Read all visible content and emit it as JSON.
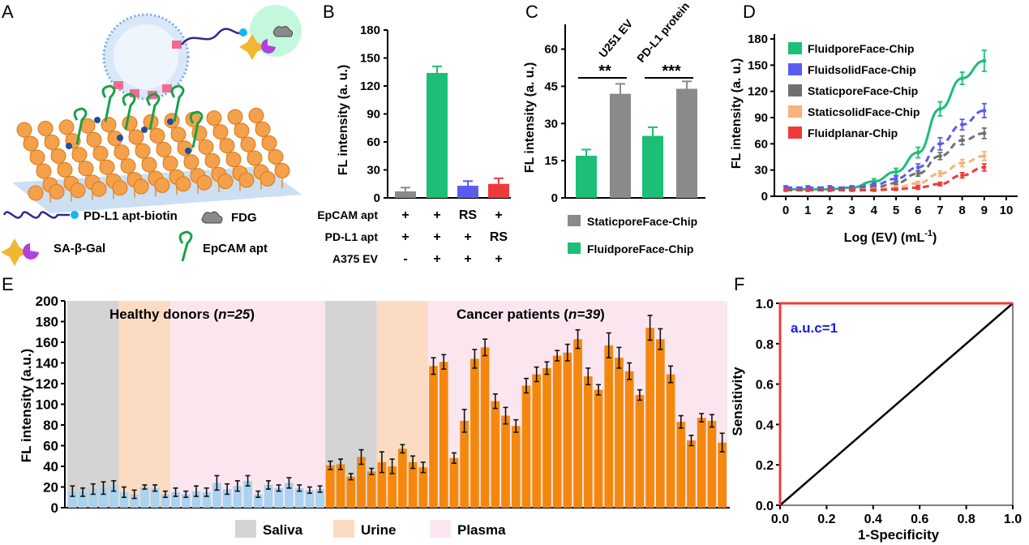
{
  "colors": {
    "green": "#1bbf75",
    "gray": "#8a8a8a",
    "blue": "#5a5cf0",
    "darkgray": "#707070",
    "peach": "#f7b37c",
    "red": "#ef3a3a",
    "orange": "#f4880f",
    "lightblue": "#a9d3ef",
    "saliva": "#d4d4d4",
    "urine": "#fbdcc2",
    "plasma": "#fbe6f0"
  },
  "panels": {
    "A": "A",
    "B": "B",
    "C": "C",
    "D": "D",
    "E": "E",
    "F": "F"
  },
  "schematic": {
    "legend": [
      {
        "icon": "dna-biotin-icon",
        "label": "PD-L1 apt-biotin"
      },
      {
        "icon": "fdg-cloud-icon",
        "label": "FDG"
      },
      {
        "icon": "sa-beta-gal-icon",
        "label": "SA-β-Gal"
      },
      {
        "icon": "epcam-aptamer-icon",
        "label": "EpCAM apt"
      }
    ]
  },
  "chart_data": [
    {
      "id": "B",
      "type": "bar",
      "ylabel": "FL intensity (a. u.)",
      "ylim": [
        0,
        180
      ],
      "yticks": [
        0,
        30,
        60,
        90,
        120,
        150,
        180
      ],
      "values": [
        7,
        134,
        13,
        15
      ],
      "errors": [
        4,
        7,
        5,
        6
      ],
      "bar_colors": [
        "#8a8a8a",
        "#1bbf75",
        "#5a5cf0",
        "#ef3a3a"
      ],
      "condition_table": {
        "rows": [
          {
            "label": "EpCAM apt",
            "cells": [
              "+",
              "+",
              "RS",
              "+"
            ]
          },
          {
            "label": "PD-L1 apt",
            "cells": [
              "+",
              "+",
              "+",
              "RS"
            ]
          },
          {
            "label": "A375 EV",
            "cells": [
              "-",
              "+",
              "+",
              "+"
            ]
          }
        ]
      }
    },
    {
      "id": "C",
      "type": "bar",
      "ylabel": "FL intensity (a. u.)",
      "ylim": [
        0,
        70
      ],
      "yticks": [
        0,
        15,
        30,
        45,
        60
      ],
      "groups": [
        "U251 EV",
        "PD-L1 protein"
      ],
      "significance": [
        "**",
        "***"
      ],
      "series": [
        {
          "name": "FluidporeFace-Chip",
          "values": [
            17,
            25
          ],
          "errors": [
            2.5,
            3.5
          ]
        },
        {
          "name": "StaticporeFace-Chip",
          "values": [
            42,
            44
          ],
          "errors": [
            4,
            3
          ]
        }
      ],
      "legend": [
        "StaticporeFace-Chip",
        "FluidporeFace-Chip"
      ]
    },
    {
      "id": "D",
      "type": "line",
      "xlabel": "Log (EV) (mL",
      "xlabel_sup": "-1",
      "xlabel_end": ")",
      "ylabel": "FL intensity (a. u.)",
      "xlim": [
        0,
        10
      ],
      "ylim": [
        0,
        180
      ],
      "xticks": [
        0,
        1,
        2,
        3,
        4,
        5,
        6,
        7,
        8,
        9,
        10
      ],
      "yticks": [
        0,
        30,
        60,
        90,
        120,
        150,
        180
      ],
      "x": [
        0,
        1,
        2,
        3,
        4,
        5,
        6,
        7,
        8,
        9
      ],
      "series": [
        {
          "name": "FluidporeFace-Chip",
          "values": [
            8,
            8,
            8,
            10,
            17,
            28,
            50,
            100,
            135,
            155
          ],
          "errors": [
            2,
            2,
            2,
            2,
            3,
            4,
            6,
            8,
            7,
            12
          ]
        },
        {
          "name": "FluidsolidFace-Chip",
          "values": [
            10,
            10,
            10,
            10,
            13,
            20,
            33,
            60,
            82,
            98
          ],
          "errors": [
            2,
            2,
            2,
            2,
            2,
            3,
            4,
            7,
            6,
            8
          ]
        },
        {
          "name": "StaticporeFace-Chip",
          "values": [
            7,
            7,
            7,
            8,
            10,
            15,
            26,
            46,
            64,
            72
          ],
          "errors": [
            1,
            1,
            1,
            1,
            2,
            2,
            3,
            4,
            5,
            6
          ]
        },
        {
          "name": "StaticsolidFace-Chip",
          "values": [
            7,
            7,
            7,
            7,
            8,
            10,
            15,
            26,
            38,
            46
          ],
          "errors": [
            1,
            1,
            1,
            1,
            1,
            2,
            2,
            3,
            4,
            5
          ]
        },
        {
          "name": "Fluidplanar-Chip",
          "values": [
            7,
            7,
            7,
            7,
            7,
            8,
            10,
            14,
            24,
            33
          ],
          "errors": [
            1,
            1,
            1,
            1,
            1,
            1,
            2,
            2,
            3,
            4
          ]
        }
      ],
      "series_colors": [
        "#1bbf75",
        "#5a5cf0",
        "#707070",
        "#f7b37c",
        "#ef3a3a"
      ]
    },
    {
      "id": "E",
      "type": "bar",
      "ylabel": "FL intensity (a.u.)",
      "ylim": [
        0,
        200
      ],
      "yticks": [
        0,
        20,
        40,
        60,
        80,
        100,
        120,
        140,
        160,
        180,
        200
      ],
      "groups": [
        {
          "label": "Healthy donors",
          "n_label": "n=25"
        },
        {
          "label": "Cancer patients",
          "n_label": "n=39"
        }
      ],
      "healthy_values": [
        16,
        15,
        18,
        19,
        21,
        15,
        13,
        20,
        19,
        13,
        15,
        13,
        16,
        15,
        24,
        18,
        21,
        26,
        13,
        22,
        19,
        24,
        19,
        17,
        18
      ],
      "healthy_errors": [
        5,
        4,
        5,
        6,
        5,
        5,
        4,
        2,
        3,
        3,
        4,
        3,
        5,
        4,
        7,
        5,
        5,
        5,
        3,
        4,
        3,
        5,
        3,
        3,
        3
      ],
      "cancer_values": [
        41,
        42,
        30,
        49,
        35,
        44,
        40,
        57,
        44,
        39,
        137,
        141,
        48,
        84,
        144,
        155,
        103,
        89,
        79,
        118,
        129,
        135,
        147,
        150,
        163,
        127,
        114,
        157,
        145,
        132,
        109,
        174,
        163,
        129,
        83,
        65,
        87,
        84,
        63
      ],
      "cancer_errors": [
        4,
        5,
        3,
        7,
        3,
        10,
        7,
        4,
        6,
        5,
        8,
        7,
        5,
        11,
        9,
        8,
        7,
        8,
        6,
        7,
        7,
        6,
        5,
        8,
        9,
        8,
        5,
        12,
        10,
        8,
        5,
        12,
        10,
        8,
        6,
        5,
        4,
        6,
        9
      ],
      "shading": [
        {
          "region": "Saliva",
          "from": 0,
          "to": 5
        },
        {
          "region": "Urine",
          "from": 5,
          "to": 10
        },
        {
          "region": "Plasma",
          "from": 10,
          "to": 25
        },
        {
          "region": "Saliva",
          "from": 25,
          "to": 30
        },
        {
          "region": "Urine",
          "from": 30,
          "to": 35
        },
        {
          "region": "Plasma",
          "from": 35,
          "to": 64
        }
      ],
      "legend": [
        "Saliva",
        "Urine",
        "Plasma"
      ]
    },
    {
      "id": "F",
      "type": "line",
      "xlabel": "1-Specificity",
      "ylabel": "Sensitivity",
      "xlim": [
        0,
        1
      ],
      "ylim": [
        0,
        1
      ],
      "xticks": [
        "0.0",
        "0.2",
        "0.4",
        "0.6",
        "0.8",
        "1.0"
      ],
      "yticks": [
        "0.0",
        "0.2",
        "0.4",
        "0.6",
        "0.8",
        "1.0"
      ],
      "annotation": "a.u.c=1",
      "roc": {
        "x": [
          0,
          0,
          1
        ],
        "y": [
          0,
          1,
          1
        ]
      },
      "reference": {
        "x": [
          0,
          1
        ],
        "y": [
          0,
          1
        ]
      }
    }
  ]
}
